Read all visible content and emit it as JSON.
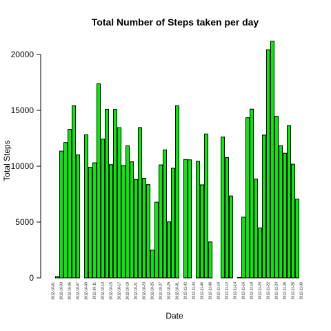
{
  "chart_data": {
    "type": "bar",
    "title": "Total Number of Steps taken per day",
    "xlabel": "Date",
    "ylabel": "Total Steps",
    "ylim": [
      0,
      21500
    ],
    "yticks": [
      0,
      5000,
      10000,
      15000,
      20000
    ],
    "categories": [
      "2012-10-01",
      "2012-10-02",
      "2012-10-03",
      "2012-10-04",
      "2012-10-05",
      "2012-10-06",
      "2012-10-07",
      "2012-10-08",
      "2012-10-09",
      "2012-10-10",
      "2012-10-11",
      "2012-10-12",
      "2012-10-13",
      "2012-10-14",
      "2012-10-15",
      "2012-10-16",
      "2012-10-17",
      "2012-10-18",
      "2012-10-19",
      "2012-10-20",
      "2012-10-21",
      "2012-10-22",
      "2012-10-23",
      "2012-10-24",
      "2012-10-25",
      "2012-10-26",
      "2012-10-27",
      "2012-10-28",
      "2012-10-29",
      "2012-10-30",
      "2012-10-31",
      "2012-11-01",
      "2012-11-02",
      "2012-11-03",
      "2012-11-04",
      "2012-11-05",
      "2012-11-06",
      "2012-11-07",
      "2012-11-08",
      "2012-11-09",
      "2012-11-10",
      "2012-11-11",
      "2012-11-12",
      "2012-11-13",
      "2012-11-14",
      "2012-11-15",
      "2012-11-16",
      "2012-11-17",
      "2012-11-18",
      "2012-11-19",
      "2012-11-20",
      "2012-11-21",
      "2012-11-22",
      "2012-11-23",
      "2012-11-24",
      "2012-11-25",
      "2012-11-26",
      "2012-11-27",
      "2012-11-28",
      "2012-11-29",
      "2012-11-30"
    ],
    "values": [
      0,
      126,
      11352,
      12116,
      13294,
      15420,
      11015,
      0,
      12811,
      9900,
      10304,
      17382,
      12426,
      15098,
      10139,
      15084,
      13452,
      10056,
      11829,
      10395,
      8821,
      13460,
      8918,
      8355,
      2492,
      6778,
      10119,
      11458,
      5018,
      9819,
      15414,
      0,
      10600,
      10571,
      0,
      10439,
      8334,
      12883,
      3219,
      0,
      0,
      12608,
      10765,
      7336,
      0,
      41,
      5441,
      14339,
      15110,
      8841,
      4472,
      12787,
      20427,
      21194,
      14478,
      11834,
      11162,
      13646,
      10183,
      7047,
      0
    ],
    "tick_labels_shown": [
      "2012-10-01",
      "2012-10-03",
      "2012-10-05",
      "2012-10-07",
      "2012-10-09",
      "2012-10-11",
      "2012-10-13",
      "2012-10-15",
      "2012-10-17",
      "2012-10-19",
      "2012-10-21",
      "2012-10-23",
      "2012-10-25",
      "2012-10-27",
      "2012-10-29",
      "2012-10-31",
      "2012-11-02",
      "2012-11-04",
      "2012-11-06",
      "2012-11-08",
      "2012-11-10",
      "2012-11-12",
      "2012-11-14",
      "2012-11-16",
      "2012-11-18",
      "2012-11-20",
      "2012-11-22",
      "2012-11-24",
      "2012-11-26",
      "2012-11-28",
      "2012-11-30"
    ],
    "bar_fill": "#00ee00",
    "bar_stroke": "#000000",
    "grid": false,
    "legend": "none"
  }
}
